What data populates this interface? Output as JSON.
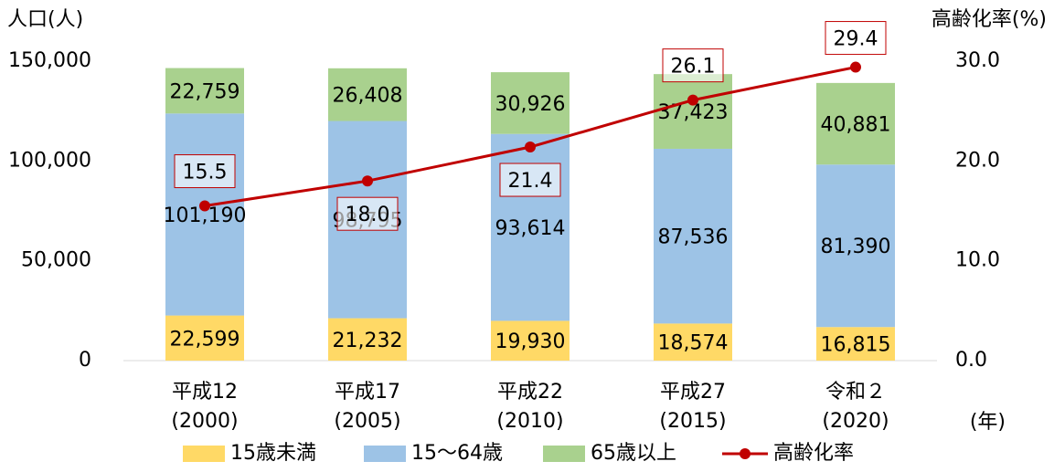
{
  "chart_data": {
    "type": "bar",
    "stacked": true,
    "y_axis_label": "人口(人)",
    "y2_axis_label": "高齢化率(%)",
    "x_axis_label": "(年)",
    "categories": [
      "平成12\n(2000)",
      "平成17\n(2005)",
      "平成22\n(2010)",
      "平成27\n(2015)",
      "令和２\n(2020)"
    ],
    "series": [
      {
        "name": "15歳未満",
        "color": "#ffd966",
        "values": [
          22599,
          21232,
          19930,
          18574,
          16815
        ],
        "value_labels": [
          "22,599",
          "21,232",
          "19,930",
          "18,574",
          "16,815"
        ]
      },
      {
        "name": "15～64歳",
        "color": "#9dc3e6",
        "values": [
          101190,
          98795,
          93614,
          87536,
          81390
        ],
        "value_labels": [
          "101,190",
          "98,795",
          "93,614",
          "87,536",
          "81,390"
        ]
      },
      {
        "name": "65歳以上",
        "color": "#a9d18e",
        "values": [
          22759,
          26408,
          30926,
          37423,
          40881
        ],
        "value_labels": [
          "22,759",
          "26,408",
          "30,926",
          "37,423",
          "40,881"
        ]
      },
      {
        "name": "高齢化率",
        "color": "#c00000",
        "type": "line",
        "axis": "y2",
        "values": [
          15.5,
          18.0,
          21.4,
          26.1,
          29.4
        ],
        "value_labels": [
          "15.5",
          "18.0",
          "21.4",
          "26.1",
          "29.4"
        ]
      }
    ],
    "ylim": [
      0,
      150000
    ],
    "yticks": [
      0,
      {
        "value": 50000,
        "label": "50,000"
      },
      {
        "value": 100000,
        "label": "100,000"
      },
      {
        "value": 150000,
        "label": "150,000"
      }
    ],
    "y2lim": [
      0,
      30
    ],
    "y2ticks": [
      {
        "value": 0,
        "label": "0.0"
      },
      {
        "value": 10,
        "label": "10.0"
      },
      {
        "value": 20,
        "label": "20.0"
      },
      {
        "value": 30,
        "label": "30.0"
      }
    ],
    "grid": false,
    "legend": "bottom"
  }
}
